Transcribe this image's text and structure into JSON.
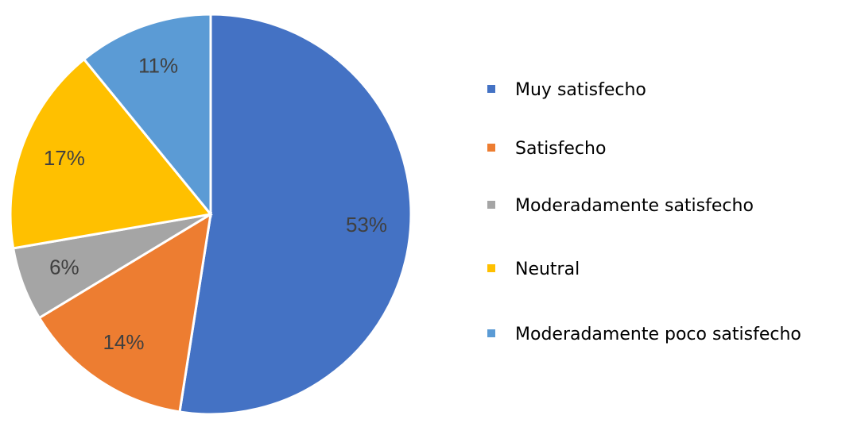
{
  "chart_data": {
    "type": "pie",
    "categories": [
      "Muy satisfecho",
      "Satisfecho",
      "Moderadamente satisfecho",
      "Neutral",
      "Moderadamente poco satisfecho"
    ],
    "values": [
      53,
      14,
      6,
      17,
      11
    ],
    "value_labels": [
      "53%",
      "14%",
      "6%",
      "17%",
      "11%"
    ],
    "colors": [
      "#4472c4",
      "#ed7d31",
      "#a5a5a5",
      "#ffc000",
      "#5b9bd5"
    ],
    "legend": "right"
  }
}
